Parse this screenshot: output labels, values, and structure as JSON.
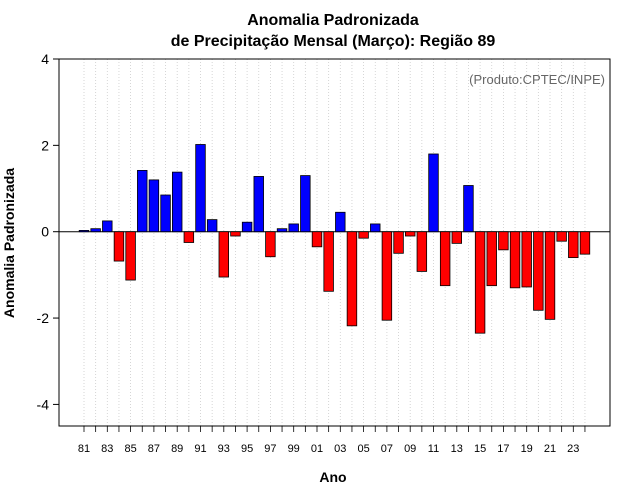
{
  "chart_data": {
    "type": "bar",
    "title": "Anomalia Padronizada",
    "subtitle": "de Precipitação Mensal (Março): Região 89",
    "credit": "(Produto:CPTEC/INPE)",
    "xlabel": "Ano",
    "ylabel": "Anomalia Padronizada",
    "ylim": [
      -4.5,
      4
    ],
    "yticks": [
      -4,
      -2,
      0,
      2,
      4
    ],
    "grid": "vertical dotted",
    "colors": {
      "positive": "#0000ff",
      "negative": "#ff0000",
      "outline": "#000000",
      "grid": "#cccccc"
    },
    "categories": [
      "81",
      "82",
      "83",
      "84",
      "85",
      "86",
      "87",
      "88",
      "89",
      "90",
      "91",
      "92",
      "93",
      "94",
      "95",
      "96",
      "97",
      "98",
      "99",
      "00",
      "01",
      "02",
      "03",
      "04",
      "05",
      "06",
      "07",
      "08",
      "09",
      "10",
      "11",
      "12",
      "13",
      "14",
      "15",
      "16",
      "17",
      "18",
      "19",
      "20",
      "21",
      "22",
      "23",
      "24"
    ],
    "xtick_labels": [
      "81",
      "83",
      "85",
      "87",
      "89",
      "91",
      "93",
      "95",
      "97",
      "99",
      "01",
      "03",
      "05",
      "07",
      "09",
      "11",
      "13",
      "15",
      "17",
      "19",
      "21",
      "23"
    ],
    "values": [
      0.03,
      0.07,
      0.25,
      -0.68,
      -1.12,
      1.42,
      1.2,
      0.85,
      1.38,
      -0.25,
      2.02,
      0.28,
      -1.05,
      -0.1,
      0.22,
      1.28,
      -0.58,
      0.07,
      0.18,
      1.3,
      -0.35,
      -1.38,
      0.45,
      -2.18,
      -0.15,
      0.18,
      -2.05,
      -0.5,
      -0.1,
      -0.92,
      1.8,
      -1.25,
      -0.27,
      1.07,
      -2.35,
      -1.25,
      -0.42,
      -1.3,
      -1.28,
      -1.82,
      -2.03,
      -0.22,
      -0.6,
      -0.52
    ]
  }
}
